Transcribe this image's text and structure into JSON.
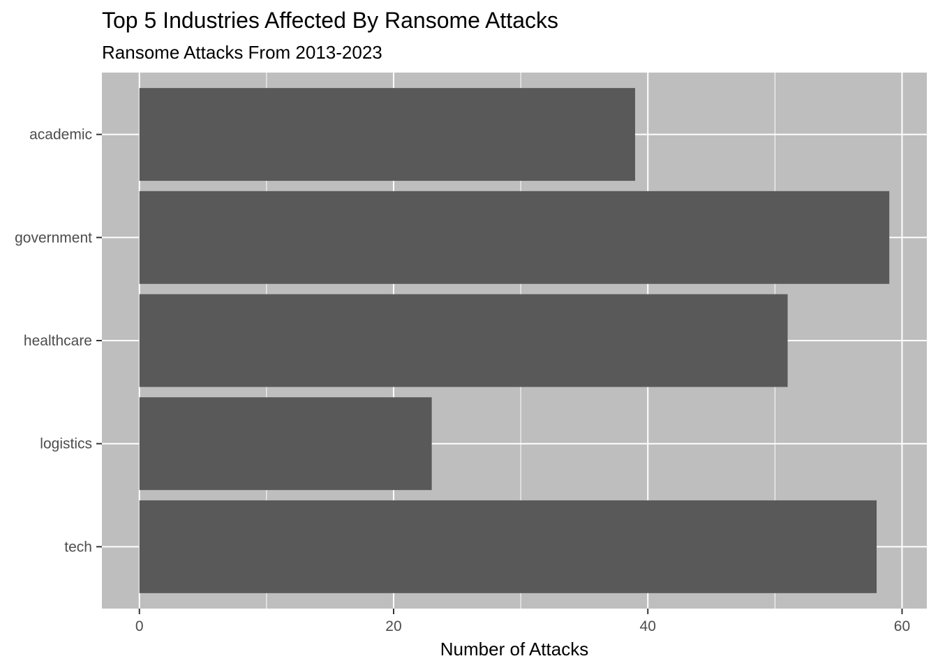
{
  "chart_data": {
    "type": "bar",
    "orientation": "horizontal",
    "title": "Top 5 Industries Affected By Ransome Attacks",
    "subtitle": "Ransome Attacks From 2013-2023",
    "xlabel": "Number of Attacks",
    "ylabel": "",
    "categories": [
      "academic",
      "government",
      "healthcare",
      "logistics",
      "tech"
    ],
    "values": [
      39,
      59,
      51,
      23,
      58
    ],
    "xlim": [
      -2.95,
      61.95
    ],
    "xticks": [
      0,
      20,
      40,
      60
    ],
    "grid": true,
    "legend": "none",
    "colors": {
      "bar": "#595959",
      "panel": "#bebebe",
      "grid": "#ffffff",
      "tick": "#333333"
    }
  }
}
